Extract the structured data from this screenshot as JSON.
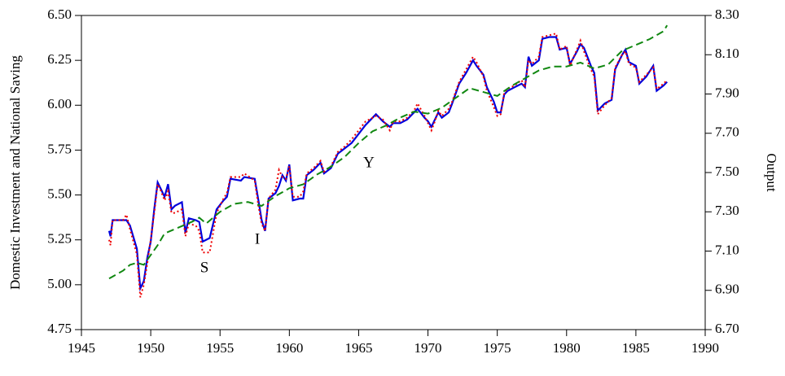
{
  "chart_data": {
    "type": "line",
    "y_label": "Domestic Investment and National Saving",
    "y2_label": "Output",
    "xlim": [
      1945,
      1990
    ],
    "xticks": [
      1945,
      1950,
      1955,
      1960,
      1965,
      1970,
      1975,
      1980,
      1985,
      1990
    ],
    "ylim": [
      4.75,
      6.5
    ],
    "yticks": [
      4.75,
      {
        "value": 5.0,
        "label": "5.00"
      },
      5.25,
      {
        "value": 5.5,
        "label": "5.50"
      },
      5.75,
      {
        "value": 6.0,
        "label": "6.00"
      },
      6.25,
      {
        "value": 6.5,
        "label": "6.50"
      }
    ],
    "y2lim": [
      6.7,
      8.3
    ],
    "y2ticks": [
      {
        "value": 6.7,
        "label": "6.70"
      },
      {
        "value": 6.9,
        "label": "6.90"
      },
      {
        "value": 7.1,
        "label": "7.10"
      },
      {
        "value": 7.3,
        "label": "7.30"
      },
      {
        "value": 7.5,
        "label": "7.50"
      },
      {
        "value": 7.7,
        "label": "7.70"
      },
      {
        "value": 7.9,
        "label": "7.90"
      },
      {
        "value": 8.1,
        "label": "8.10"
      },
      {
        "value": 8.3,
        "label": "8.30"
      }
    ],
    "x": [
      1947.0,
      1947.1,
      1947.25,
      1948.0,
      1948.25,
      1948.5,
      1949.0,
      1949.25,
      1949.5,
      1949.75,
      1950.0,
      1950.25,
      1950.5,
      1950.75,
      1951.0,
      1951.25,
      1951.5,
      1951.75,
      1952.25,
      1952.5,
      1952.75,
      1953.25,
      1953.5,
      1953.75,
      1954.25,
      1954.75,
      1955.25,
      1955.5,
      1955.75,
      1956.5,
      1956.75,
      1957.5,
      1957.75,
      1958.0,
      1958.25,
      1958.5,
      1959.0,
      1959.25,
      1959.5,
      1959.75,
      1960.0,
      1960.25,
      1960.75,
      1961.0,
      1961.25,
      1961.75,
      1962.25,
      1962.5,
      1963.0,
      1963.5,
      1964.0,
      1964.5,
      1965.0,
      1965.5,
      1966.0,
      1966.25,
      1966.75,
      1967.25,
      1967.5,
      1968.0,
      1968.5,
      1969.0,
      1969.25,
      1969.75,
      1970.0,
      1970.25,
      1970.5,
      1970.75,
      1971.0,
      1971.5,
      1971.75,
      1972.25,
      1972.75,
      1973.25,
      1973.5,
      1974.0,
      1974.25,
      1974.75,
      1975.0,
      1975.25,
      1975.5,
      1975.75,
      1976.25,
      1976.75,
      1977.0,
      1977.25,
      1977.5,
      1978.0,
      1978.25,
      1978.75,
      1979.25,
      1979.5,
      1980.0,
      1980.25,
      1980.75,
      1981.0,
      1981.25,
      1981.75,
      1982.0,
      1982.25,
      1982.75,
      1983.25,
      1983.5,
      1984.0,
      1984.25,
      1984.5,
      1985.0,
      1985.25,
      1985.75,
      1986.25,
      1986.5,
      1987.0,
      1987.25
    ],
    "series": [
      {
        "name": "I",
        "color": "#0000dd",
        "dash": "solid",
        "values": [
          5.3,
          5.27,
          5.36,
          5.36,
          5.36,
          5.33,
          5.2,
          4.98,
          5.02,
          5.15,
          5.24,
          5.42,
          5.57,
          5.53,
          5.49,
          5.56,
          5.42,
          5.44,
          5.46,
          5.29,
          5.37,
          5.36,
          5.35,
          5.24,
          5.26,
          5.42,
          5.47,
          5.49,
          5.59,
          5.58,
          5.6,
          5.59,
          5.48,
          5.36,
          5.3,
          5.48,
          5.51,
          5.55,
          5.61,
          5.58,
          5.67,
          5.47,
          5.48,
          5.48,
          5.61,
          5.64,
          5.68,
          5.62,
          5.65,
          5.73,
          5.76,
          5.79,
          5.84,
          5.89,
          5.93,
          5.95,
          5.91,
          5.88,
          5.9,
          5.9,
          5.92,
          5.96,
          5.98,
          5.93,
          5.91,
          5.88,
          5.92,
          5.96,
          5.93,
          5.96,
          6.01,
          6.12,
          6.18,
          6.25,
          6.22,
          6.17,
          6.1,
          6.02,
          5.96,
          5.96,
          6.06,
          6.08,
          6.1,
          6.12,
          6.1,
          6.27,
          6.22,
          6.25,
          6.37,
          6.38,
          6.38,
          6.31,
          6.32,
          6.23,
          6.3,
          6.34,
          6.32,
          6.22,
          6.18,
          5.97,
          6.01,
          6.03,
          6.2,
          6.28,
          6.31,
          6.24,
          6.22,
          6.12,
          6.16,
          6.22,
          6.08,
          6.11,
          6.13
        ]
      },
      {
        "name": "S",
        "color": "#ee0000",
        "dash": "dotted",
        "values": [
          5.25,
          5.22,
          5.36,
          5.36,
          5.39,
          5.31,
          5.17,
          4.93,
          5.0,
          5.12,
          5.25,
          5.4,
          5.56,
          5.52,
          5.47,
          5.52,
          5.4,
          5.4,
          5.42,
          5.27,
          5.34,
          5.33,
          5.3,
          5.18,
          5.18,
          5.4,
          5.48,
          5.51,
          5.6,
          5.6,
          5.62,
          5.58,
          5.45,
          5.34,
          5.3,
          5.48,
          5.53,
          5.64,
          5.6,
          5.59,
          5.66,
          5.49,
          5.49,
          5.52,
          5.62,
          5.65,
          5.69,
          5.63,
          5.66,
          5.74,
          5.77,
          5.81,
          5.86,
          5.91,
          5.93,
          5.94,
          5.92,
          5.86,
          5.91,
          5.91,
          5.93,
          5.97,
          6.01,
          5.94,
          5.9,
          5.86,
          5.91,
          5.97,
          5.94,
          5.98,
          6.02,
          6.13,
          6.2,
          6.27,
          6.24,
          6.16,
          6.08,
          5.99,
          5.94,
          5.95,
          6.07,
          6.09,
          6.11,
          6.14,
          6.1,
          6.25,
          6.23,
          6.27,
          6.38,
          6.39,
          6.4,
          6.31,
          6.33,
          6.22,
          6.31,
          6.36,
          6.3,
          6.2,
          6.16,
          5.95,
          6.0,
          6.04,
          6.21,
          6.28,
          6.3,
          6.23,
          6.21,
          6.13,
          6.17,
          6.21,
          6.09,
          6.12,
          6.14
        ]
      },
      {
        "name": "Y",
        "color": "#118811",
        "dash": "dashed",
        "axis": "y2",
        "x": [
          1947,
          1948,
          1948.5,
          1949,
          1949.5,
          1950,
          1950.5,
          1951,
          1952,
          1953,
          1953.5,
          1954,
          1955,
          1956,
          1957,
          1958,
          1959,
          1960,
          1961,
          1962,
          1963,
          1964,
          1965,
          1966,
          1967,
          1968,
          1969,
          1970,
          1971,
          1972,
          1973,
          1974,
          1975,
          1976,
          1977,
          1978,
          1979,
          1980,
          1981,
          1982,
          1983,
          1984,
          1985,
          1986,
          1987,
          1987.25
        ],
        "values": [
          6.96,
          7.0,
          7.03,
          7.04,
          7.03,
          7.08,
          7.13,
          7.19,
          7.22,
          7.25,
          7.27,
          7.24,
          7.3,
          7.34,
          7.35,
          7.33,
          7.38,
          7.42,
          7.44,
          7.49,
          7.53,
          7.58,
          7.65,
          7.71,
          7.74,
          7.78,
          7.81,
          7.8,
          7.83,
          7.88,
          7.93,
          7.91,
          7.89,
          7.94,
          7.98,
          8.02,
          8.04,
          8.04,
          8.06,
          8.03,
          8.05,
          8.12,
          8.15,
          8.18,
          8.22,
          8.25
        ]
      }
    ]
  }
}
